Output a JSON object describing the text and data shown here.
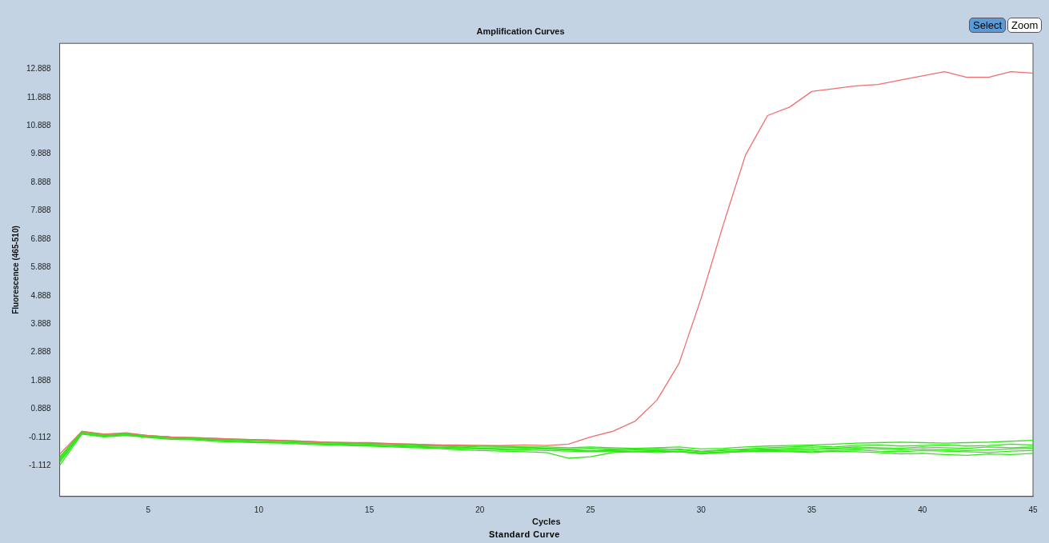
{
  "chart_data": {
    "type": "line",
    "title": "Amplification Curves",
    "xlabel": "Cycles",
    "ylabel": "Fluorescence (465-510)",
    "annotations": [
      "Select",
      "Zoom",
      "Standard Curve"
    ],
    "x": [
      1,
      2,
      3,
      4,
      5,
      6,
      7,
      8,
      9,
      10,
      11,
      12,
      13,
      14,
      15,
      16,
      17,
      18,
      19,
      20,
      21,
      22,
      23,
      24,
      25,
      26,
      27,
      28,
      29,
      30,
      31,
      32,
      33,
      34,
      35,
      36,
      37,
      38,
      39,
      40,
      41,
      42,
      43,
      44,
      45
    ],
    "xlim": [
      1,
      45
    ],
    "xticks": [
      5,
      10,
      15,
      20,
      25,
      30,
      35,
      40,
      45
    ],
    "ylim": [
      -2.2,
      13.8
    ],
    "yticks": [
      {
        "value": -1.112,
        "label": "-1.112"
      },
      {
        "value": -0.112,
        "label": "-0.112"
      },
      {
        "value": 0.888,
        "label": "0.888"
      },
      {
        "value": 1.888,
        "label": "1.888"
      },
      {
        "value": 2.888,
        "label": "2.888"
      },
      {
        "value": 3.888,
        "label": "3.888"
      },
      {
        "value": 4.888,
        "label": "4.888"
      },
      {
        "value": 5.888,
        "label": "5.888"
      },
      {
        "value": 6.888,
        "label": "6.888"
      },
      {
        "value": 7.888,
        "label": "7.888"
      },
      {
        "value": 8.888,
        "label": "8.888"
      },
      {
        "value": 9.888,
        "label": "9.888"
      },
      {
        "value": 10.888,
        "label": "10.888"
      },
      {
        "value": 11.888,
        "label": "11.888"
      },
      {
        "value": 12.888,
        "label": "12.888"
      }
    ],
    "grid": false,
    "legend": false,
    "marker": "none",
    "line_style": "solid",
    "series": [
      {
        "color": "#33e61a",
        "values": [
          -0.9,
          0.05,
          -0.05,
          0.0,
          -0.08,
          -0.12,
          -0.15,
          -0.18,
          -0.2,
          -0.22,
          -0.25,
          -0.28,
          -0.3,
          -0.33,
          -0.35,
          -0.37,
          -0.4,
          -0.42,
          -0.42,
          -0.45,
          -0.45,
          -0.48,
          -0.5,
          -0.52,
          -0.5,
          -0.52,
          -0.55,
          -0.55,
          -0.52,
          -0.6,
          -0.55,
          -0.55,
          -0.52,
          -0.5,
          -0.48,
          -0.5,
          -0.45,
          -0.48,
          -0.5,
          -0.45,
          -0.48,
          -0.5,
          -0.45,
          -0.48,
          -0.45
        ]
      },
      {
        "color": "#33e61a",
        "values": [
          -1.1,
          0.0,
          -0.1,
          -0.05,
          -0.12,
          -0.18,
          -0.2,
          -0.25,
          -0.28,
          -0.3,
          -0.32,
          -0.35,
          -0.38,
          -0.4,
          -0.42,
          -0.45,
          -0.48,
          -0.5,
          -0.55,
          -0.58,
          -0.6,
          -0.62,
          -0.65,
          -0.85,
          -0.8,
          -0.65,
          -0.62,
          -0.6,
          -0.62,
          -0.7,
          -0.65,
          -0.62,
          -0.6,
          -0.62,
          -0.65,
          -0.6,
          -0.62,
          -0.65,
          -0.7,
          -0.68,
          -0.72,
          -0.75,
          -0.7,
          -0.72,
          -0.68
        ]
      },
      {
        "color": "#33e61a",
        "values": [
          -0.8,
          0.1,
          0.0,
          0.02,
          -0.05,
          -0.1,
          -0.12,
          -0.15,
          -0.18,
          -0.2,
          -0.22,
          -0.25,
          -0.28,
          -0.3,
          -0.32,
          -0.35,
          -0.35,
          -0.38,
          -0.4,
          -0.4,
          -0.42,
          -0.45,
          -0.45,
          -0.48,
          -0.45,
          -0.48,
          -0.5,
          -0.48,
          -0.45,
          -0.52,
          -0.5,
          -0.45,
          -0.42,
          -0.4,
          -0.38,
          -0.35,
          -0.32,
          -0.3,
          -0.28,
          -0.3,
          -0.32,
          -0.3,
          -0.28,
          -0.25,
          -0.22
        ]
      },
      {
        "color": "#33e61a",
        "values": [
          -0.95,
          0.02,
          -0.08,
          -0.02,
          -0.1,
          -0.15,
          -0.18,
          -0.22,
          -0.25,
          -0.28,
          -0.3,
          -0.32,
          -0.35,
          -0.38,
          -0.4,
          -0.42,
          -0.45,
          -0.48,
          -0.5,
          -0.52,
          -0.55,
          -0.55,
          -0.58,
          -0.6,
          -0.62,
          -0.6,
          -0.62,
          -0.65,
          -0.62,
          -0.68,
          -0.65,
          -0.6,
          -0.58,
          -0.6,
          -0.62,
          -0.58,
          -0.55,
          -0.6,
          -0.62,
          -0.58,
          -0.6,
          -0.62,
          -0.65,
          -0.6,
          -0.58
        ]
      },
      {
        "color": "#33e61a",
        "values": [
          -0.85,
          0.08,
          -0.02,
          0.02,
          -0.06,
          -0.1,
          -0.14,
          -0.16,
          -0.2,
          -0.22,
          -0.24,
          -0.27,
          -0.3,
          -0.32,
          -0.34,
          -0.36,
          -0.38,
          -0.4,
          -0.45,
          -0.5,
          -0.48,
          -0.45,
          -0.5,
          -0.55,
          -0.58,
          -0.55,
          -0.52,
          -0.5,
          -0.55,
          -0.62,
          -0.58,
          -0.52,
          -0.48,
          -0.45,
          -0.42,
          -0.45,
          -0.4,
          -0.38,
          -0.42,
          -0.4,
          -0.38,
          -0.42,
          -0.4,
          -0.35,
          -0.38
        ]
      },
      {
        "color": "#33e61a",
        "values": [
          -1.0,
          0.04,
          -0.06,
          -0.03,
          -0.1,
          -0.14,
          -0.17,
          -0.2,
          -0.23,
          -0.26,
          -0.29,
          -0.31,
          -0.34,
          -0.36,
          -0.39,
          -0.41,
          -0.43,
          -0.46,
          -0.48,
          -0.5,
          -0.52,
          -0.5,
          -0.53,
          -0.56,
          -0.6,
          -0.58,
          -0.6,
          -0.58,
          -0.6,
          -0.66,
          -0.62,
          -0.58,
          -0.55,
          -0.56,
          -0.55,
          -0.52,
          -0.5,
          -0.52,
          -0.55,
          -0.52,
          -0.55,
          -0.58,
          -0.55,
          -0.52,
          -0.5
        ]
      },
      {
        "color": "#f06e6e",
        "values": [
          -0.7,
          0.1,
          0.0,
          0.05,
          -0.05,
          -0.1,
          -0.12,
          -0.15,
          -0.18,
          -0.2,
          -0.22,
          -0.25,
          -0.28,
          -0.3,
          -0.3,
          -0.33,
          -0.35,
          -0.38,
          -0.38,
          -0.4,
          -0.4,
          -0.38,
          -0.4,
          -0.35,
          -0.1,
          0.1,
          0.45,
          1.2,
          2.5,
          4.8,
          7.4,
          9.85,
          11.25,
          11.55,
          12.1,
          12.2,
          12.3,
          12.35,
          12.5,
          12.65,
          12.8,
          12.6,
          12.6,
          12.8,
          12.75
        ]
      }
    ]
  }
}
